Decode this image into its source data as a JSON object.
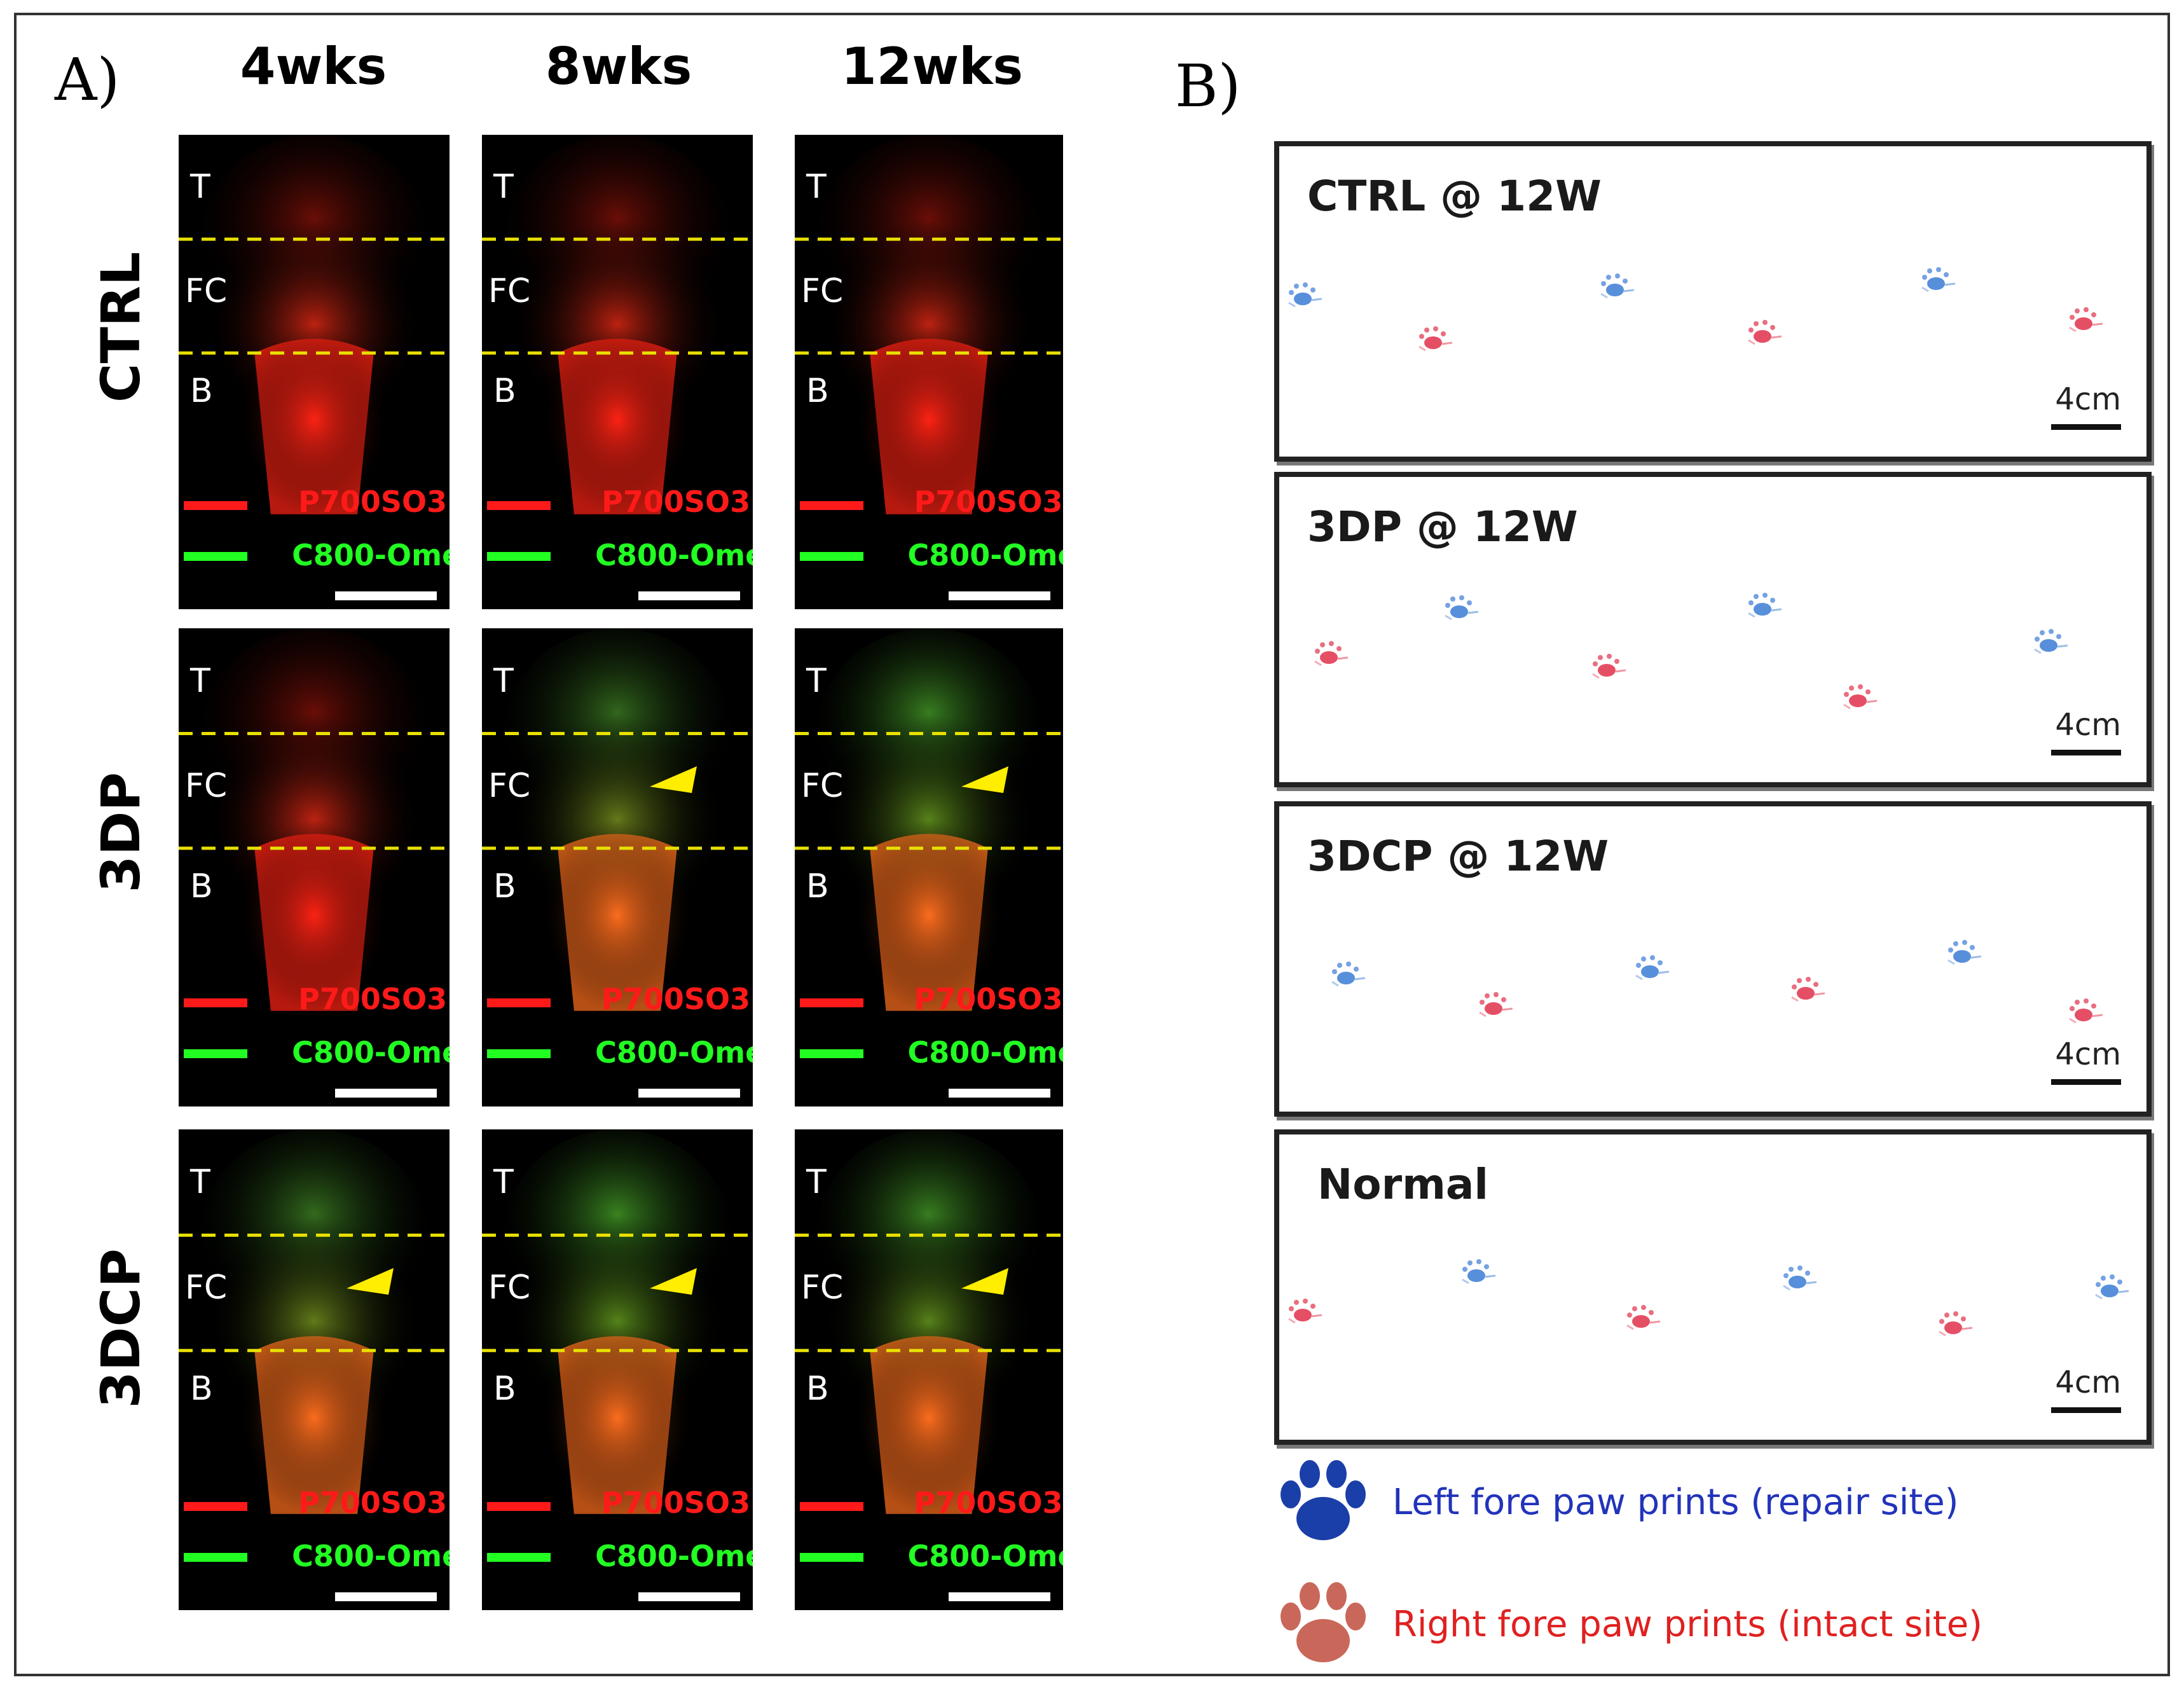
{
  "panel_a": {
    "letter": "A)",
    "columns": [
      "4wks",
      "8wks",
      "12wks"
    ],
    "rows": [
      "CTRL",
      "3DP",
      "3DCP"
    ],
    "zones": {
      "top": "T",
      "middle": "FC",
      "bottom": "B"
    },
    "legend": {
      "red_label": "P700SO3",
      "green_label": "C800-Ome",
      "red_color": "#ff1a1a",
      "green_color": "#22ff22"
    },
    "arrow_color": "#ffee00",
    "divider_color": "#e8e000"
  },
  "panel_b": {
    "letter": "B)",
    "boxes": [
      {
        "title": "CTRL @ 12W",
        "scale": "4cm"
      },
      {
        "title": "3DP @ 12W",
        "scale": "4cm"
      },
      {
        "title": "3DCP @ 12W",
        "scale": "4cm"
      },
      {
        "title": "Normal",
        "scale": "4cm"
      }
    ],
    "legend": {
      "left": {
        "label": "Left fore paw prints (repair site)",
        "color": "#2233bb",
        "icon": "paw-icon-blue"
      },
      "right": {
        "label": "Right fore paw prints (intact site)",
        "color": "#e02020",
        "icon": "paw-icon-red"
      }
    },
    "paw_colors": {
      "left": "#3a7bd5",
      "right": "#e0304a"
    }
  }
}
